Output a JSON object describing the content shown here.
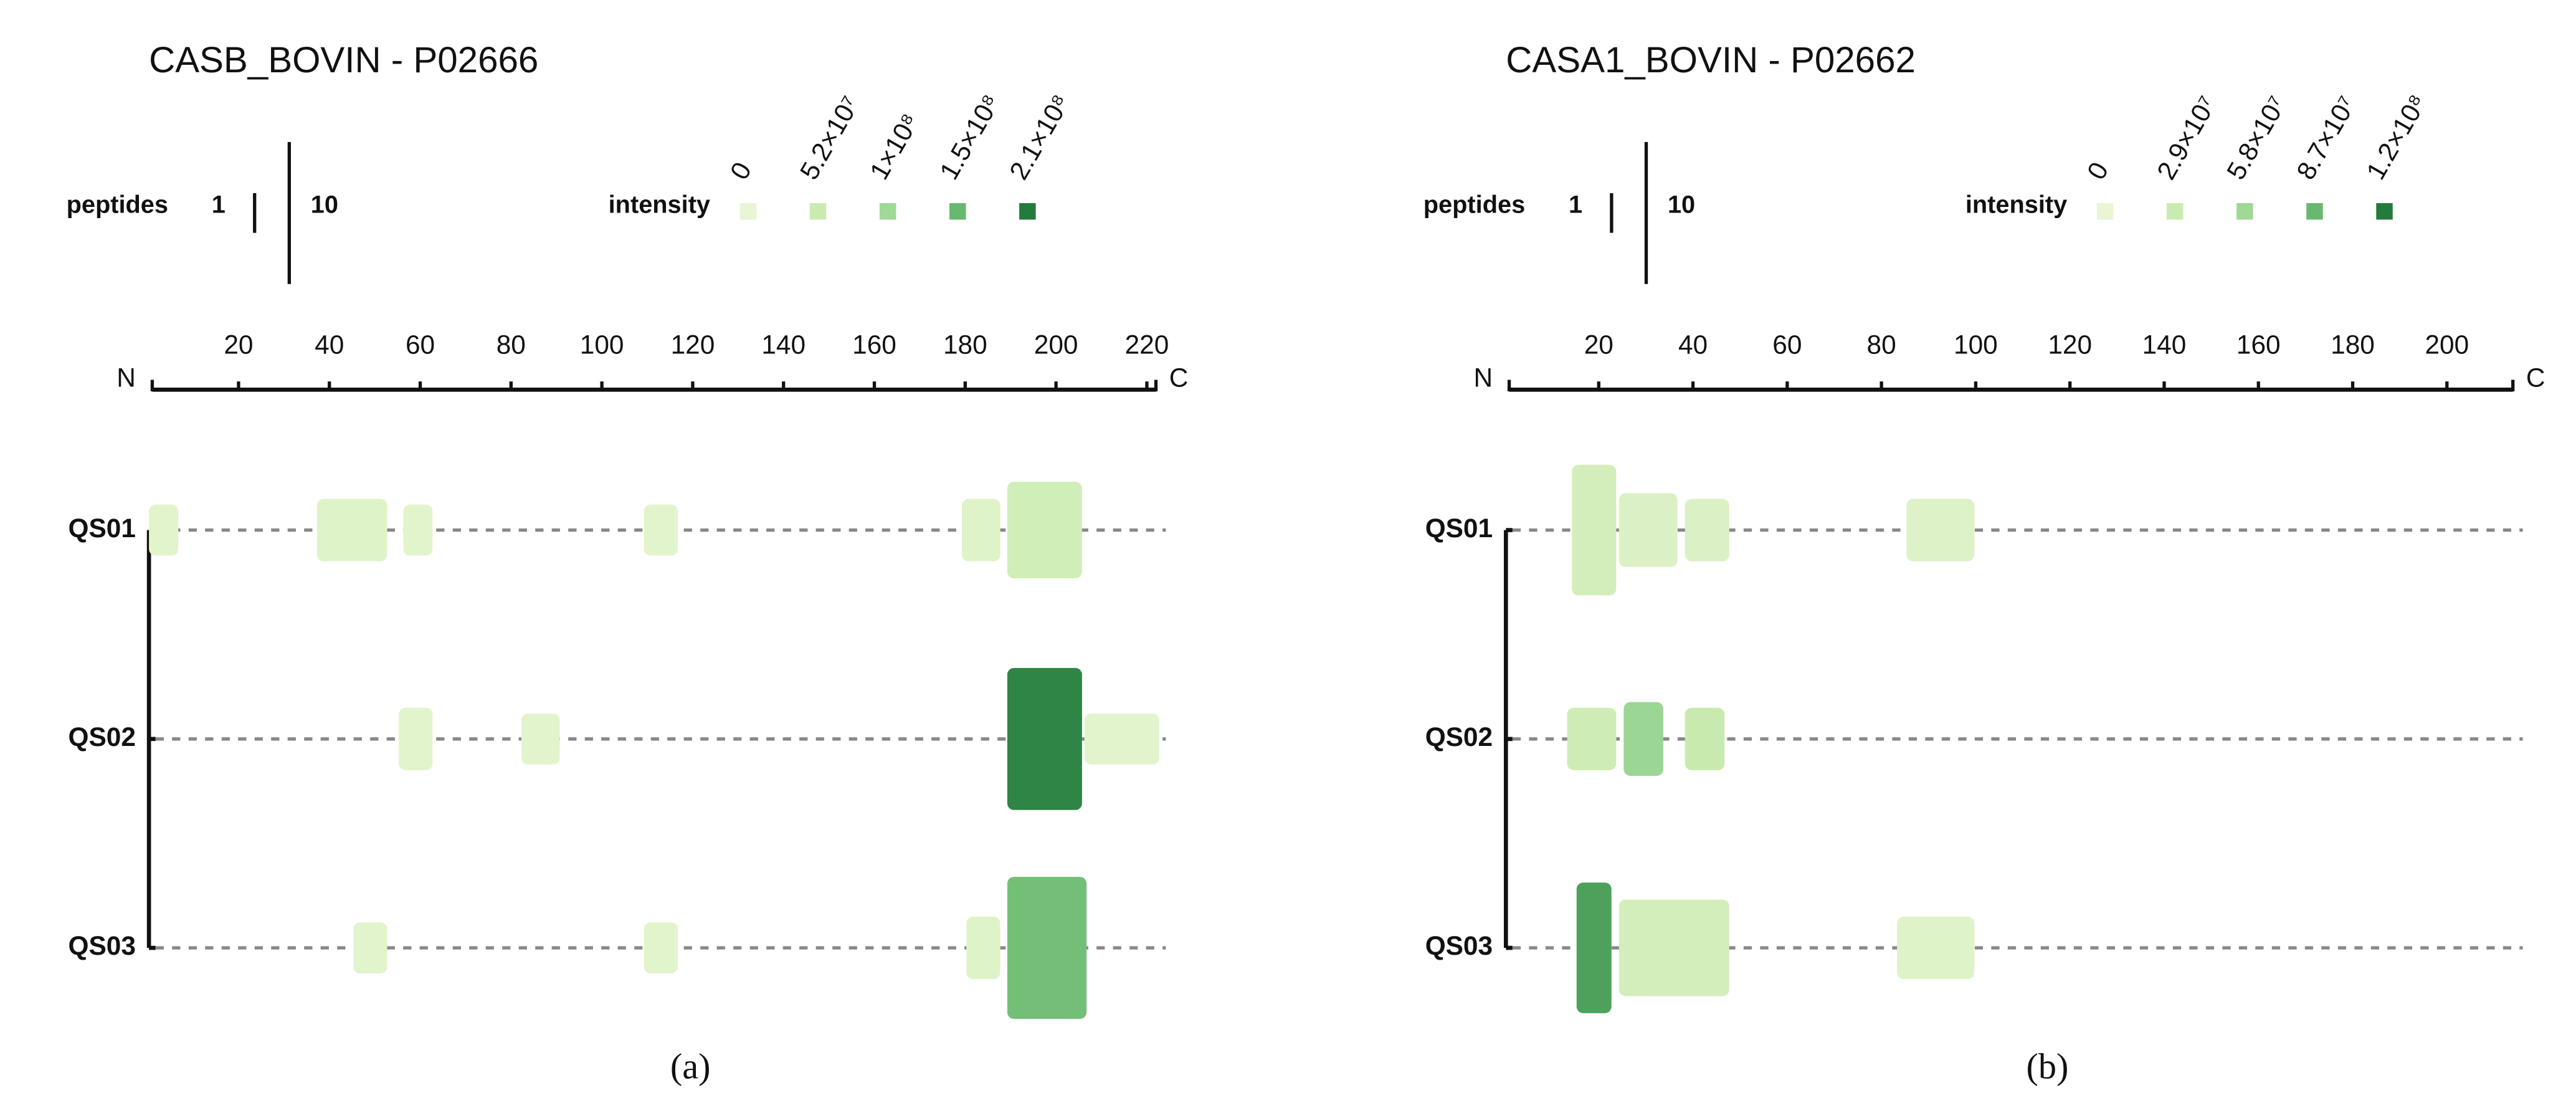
{
  "chart_data": [
    {
      "type": "peptide-map",
      "title": "CASB_BOVIN - P02666",
      "panel_label": "(a)",
      "peptides_label": "peptides",
      "peptides_ticks": [
        1,
        10
      ],
      "intensity_label": "intensity",
      "intensity_ticks": [
        0,
        {
          "value": 52000000,
          "label": "5.2×10⁷"
        },
        {
          "value": 100000000,
          "label": "1×10⁸"
        },
        {
          "value": 150000000,
          "label": "1.5×10⁸"
        },
        {
          "value": 210000000,
          "label": "2.1×10⁸"
        }
      ],
      "intensity_colors": [
        "#e8f6d3",
        "#c9ebb0",
        "#9fd897",
        "#68b96f",
        "#237b3c"
      ],
      "start_label": "N",
      "end_label": "C",
      "xlim": [
        1,
        222
      ],
      "xticks": [
        20,
        40,
        60,
        80,
        100,
        120,
        140,
        160,
        180,
        200,
        220
      ],
      "samples": [
        "QS01",
        "QS02",
        "QS03"
      ],
      "rows": [
        {
          "blocks": [
            {
              "start": 1,
              "end": 6,
              "peptides": 2,
              "intensity": 10000000
            },
            {
              "start": 38,
              "end": 52,
              "peptides": 3,
              "intensity": 15000000
            },
            {
              "start": 57,
              "end": 62,
              "peptides": 2,
              "intensity": 10000000
            },
            {
              "start": 110,
              "end": 116,
              "peptides": 2,
              "intensity": 10000000
            },
            {
              "start": 180,
              "end": 187,
              "peptides": 3,
              "intensity": 15000000
            },
            {
              "start": 190,
              "end": 205,
              "peptides": 6,
              "intensity": 40000000
            }
          ]
        },
        {
          "blocks": [
            {
              "start": 56,
              "end": 62,
              "peptides": 3,
              "intensity": 10000000
            },
            {
              "start": 83,
              "end": 90,
              "peptides": 2,
              "intensity": 10000000
            },
            {
              "start": 190,
              "end": 205,
              "peptides": 10,
              "intensity": 200000000
            },
            {
              "start": 207,
              "end": 222,
              "peptides": 2,
              "intensity": 10000000
            }
          ]
        },
        {
          "blocks": [
            {
              "start": 46,
              "end": 52,
              "peptides": 2,
              "intensity": 10000000
            },
            {
              "start": 110,
              "end": 116,
              "peptides": 2,
              "intensity": 10000000
            },
            {
              "start": 181,
              "end": 187,
              "peptides": 3,
              "intensity": 15000000
            },
            {
              "start": 190,
              "end": 206,
              "peptides": 10,
              "intensity": 140000000
            }
          ]
        }
      ]
    },
    {
      "type": "peptide-map",
      "title": "CASA1_BOVIN - P02662",
      "panel_label": "(b)",
      "peptides_label": "peptides",
      "peptides_ticks": [
        1,
        10
      ],
      "intensity_label": "intensity",
      "intensity_ticks": [
        0,
        {
          "value": 29000000,
          "label": "2.9×10⁷"
        },
        {
          "value": 58000000,
          "label": "5.8×10⁷"
        },
        {
          "value": 87000000,
          "label": "8.7×10⁷"
        },
        {
          "value": 120000000,
          "label": "1.2×10⁸"
        }
      ],
      "intensity_colors": [
        "#e8f6d3",
        "#c9ebb0",
        "#9fd897",
        "#68b96f",
        "#237b3c"
      ],
      "start_label": "N",
      "end_label": "C",
      "xlim": [
        1,
        214
      ],
      "xticks": [
        20,
        40,
        60,
        80,
        100,
        120,
        140,
        160,
        180,
        200
      ],
      "samples": [
        "QS01",
        "QS02",
        "QS03"
      ],
      "rows": [
        {
          "blocks": [
            {
              "start": 15,
              "end": 23,
              "peptides": 9,
              "intensity": 20000000
            },
            {
              "start": 25,
              "end": 36,
              "peptides": 4,
              "intensity": 12000000
            },
            {
              "start": 39,
              "end": 47,
              "peptides": 3,
              "intensity": 12000000
            },
            {
              "start": 86,
              "end": 99,
              "peptides": 3,
              "intensity": 10000000
            }
          ]
        },
        {
          "blocks": [
            {
              "start": 14,
              "end": 23,
              "peptides": 3,
              "intensity": 25000000
            },
            {
              "start": 26,
              "end": 33,
              "peptides": 4,
              "intensity": 60000000
            },
            {
              "start": 39,
              "end": 46,
              "peptides": 3,
              "intensity": 30000000
            }
          ]
        },
        {
          "blocks": [
            {
              "start": 16,
              "end": 22,
              "peptides": 9,
              "intensity": 100000000
            },
            {
              "start": 25,
              "end": 47,
              "peptides": 6,
              "intensity": 20000000
            },
            {
              "start": 84,
              "end": 99,
              "peptides": 3,
              "intensity": 8000000
            }
          ]
        }
      ]
    }
  ]
}
